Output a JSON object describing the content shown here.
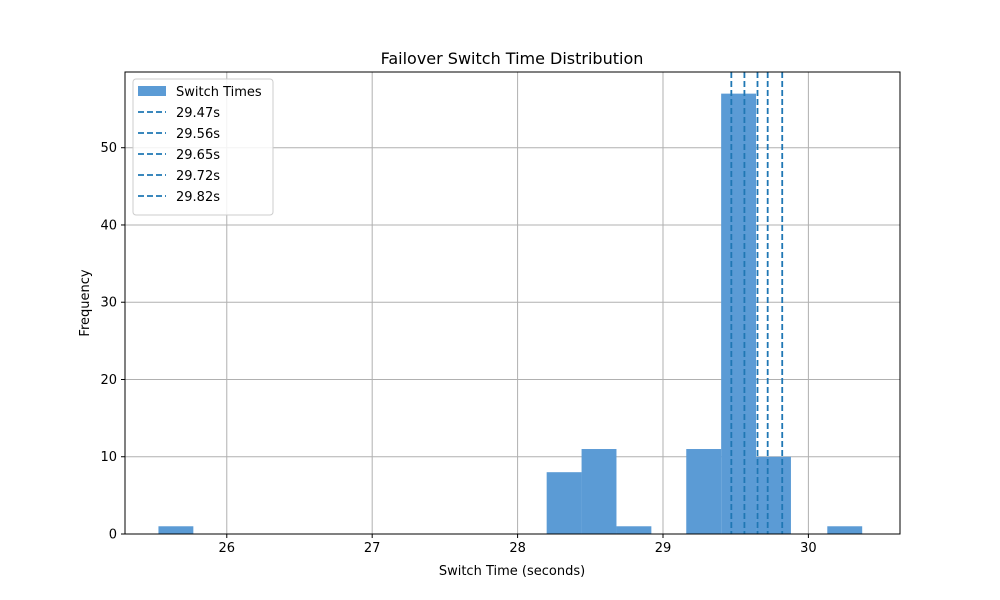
{
  "chart_data": {
    "type": "bar",
    "title": "Failover Switch Time Distribution",
    "xlabel": "Switch Time (seconds)",
    "ylabel": "Frequency",
    "xlim": [
      25.3,
      30.63
    ],
    "ylim": [
      0,
      59.8
    ],
    "xticks": [
      26,
      27,
      28,
      29,
      30
    ],
    "yticks": [
      0,
      10,
      20,
      30,
      40,
      50
    ],
    "grid": true,
    "legend_position": "top-left",
    "bar_color": "#5b9bd5",
    "line_color": "#1f77b4",
    "series": [
      {
        "name": "Switch Times",
        "bins": [
          {
            "x0": 25.53,
            "x1": 25.77,
            "count": 1
          },
          {
            "x0": 28.2,
            "x1": 28.44,
            "count": 8
          },
          {
            "x0": 28.44,
            "x1": 28.68,
            "count": 11
          },
          {
            "x0": 28.68,
            "x1": 28.92,
            "count": 1
          },
          {
            "x0": 29.16,
            "x1": 29.4,
            "count": 11
          },
          {
            "x0": 29.4,
            "x1": 29.64,
            "count": 57
          },
          {
            "x0": 29.64,
            "x1": 29.88,
            "count": 10
          },
          {
            "x0": 30.13,
            "x1": 30.37,
            "count": 1
          }
        ]
      }
    ],
    "vlines": [
      {
        "name": "29.47s",
        "x": 29.47
      },
      {
        "name": "29.56s",
        "x": 29.56
      },
      {
        "name": "29.65s",
        "x": 29.65
      },
      {
        "name": "29.72s",
        "x": 29.72
      },
      {
        "name": "29.82s",
        "x": 29.82
      }
    ]
  }
}
